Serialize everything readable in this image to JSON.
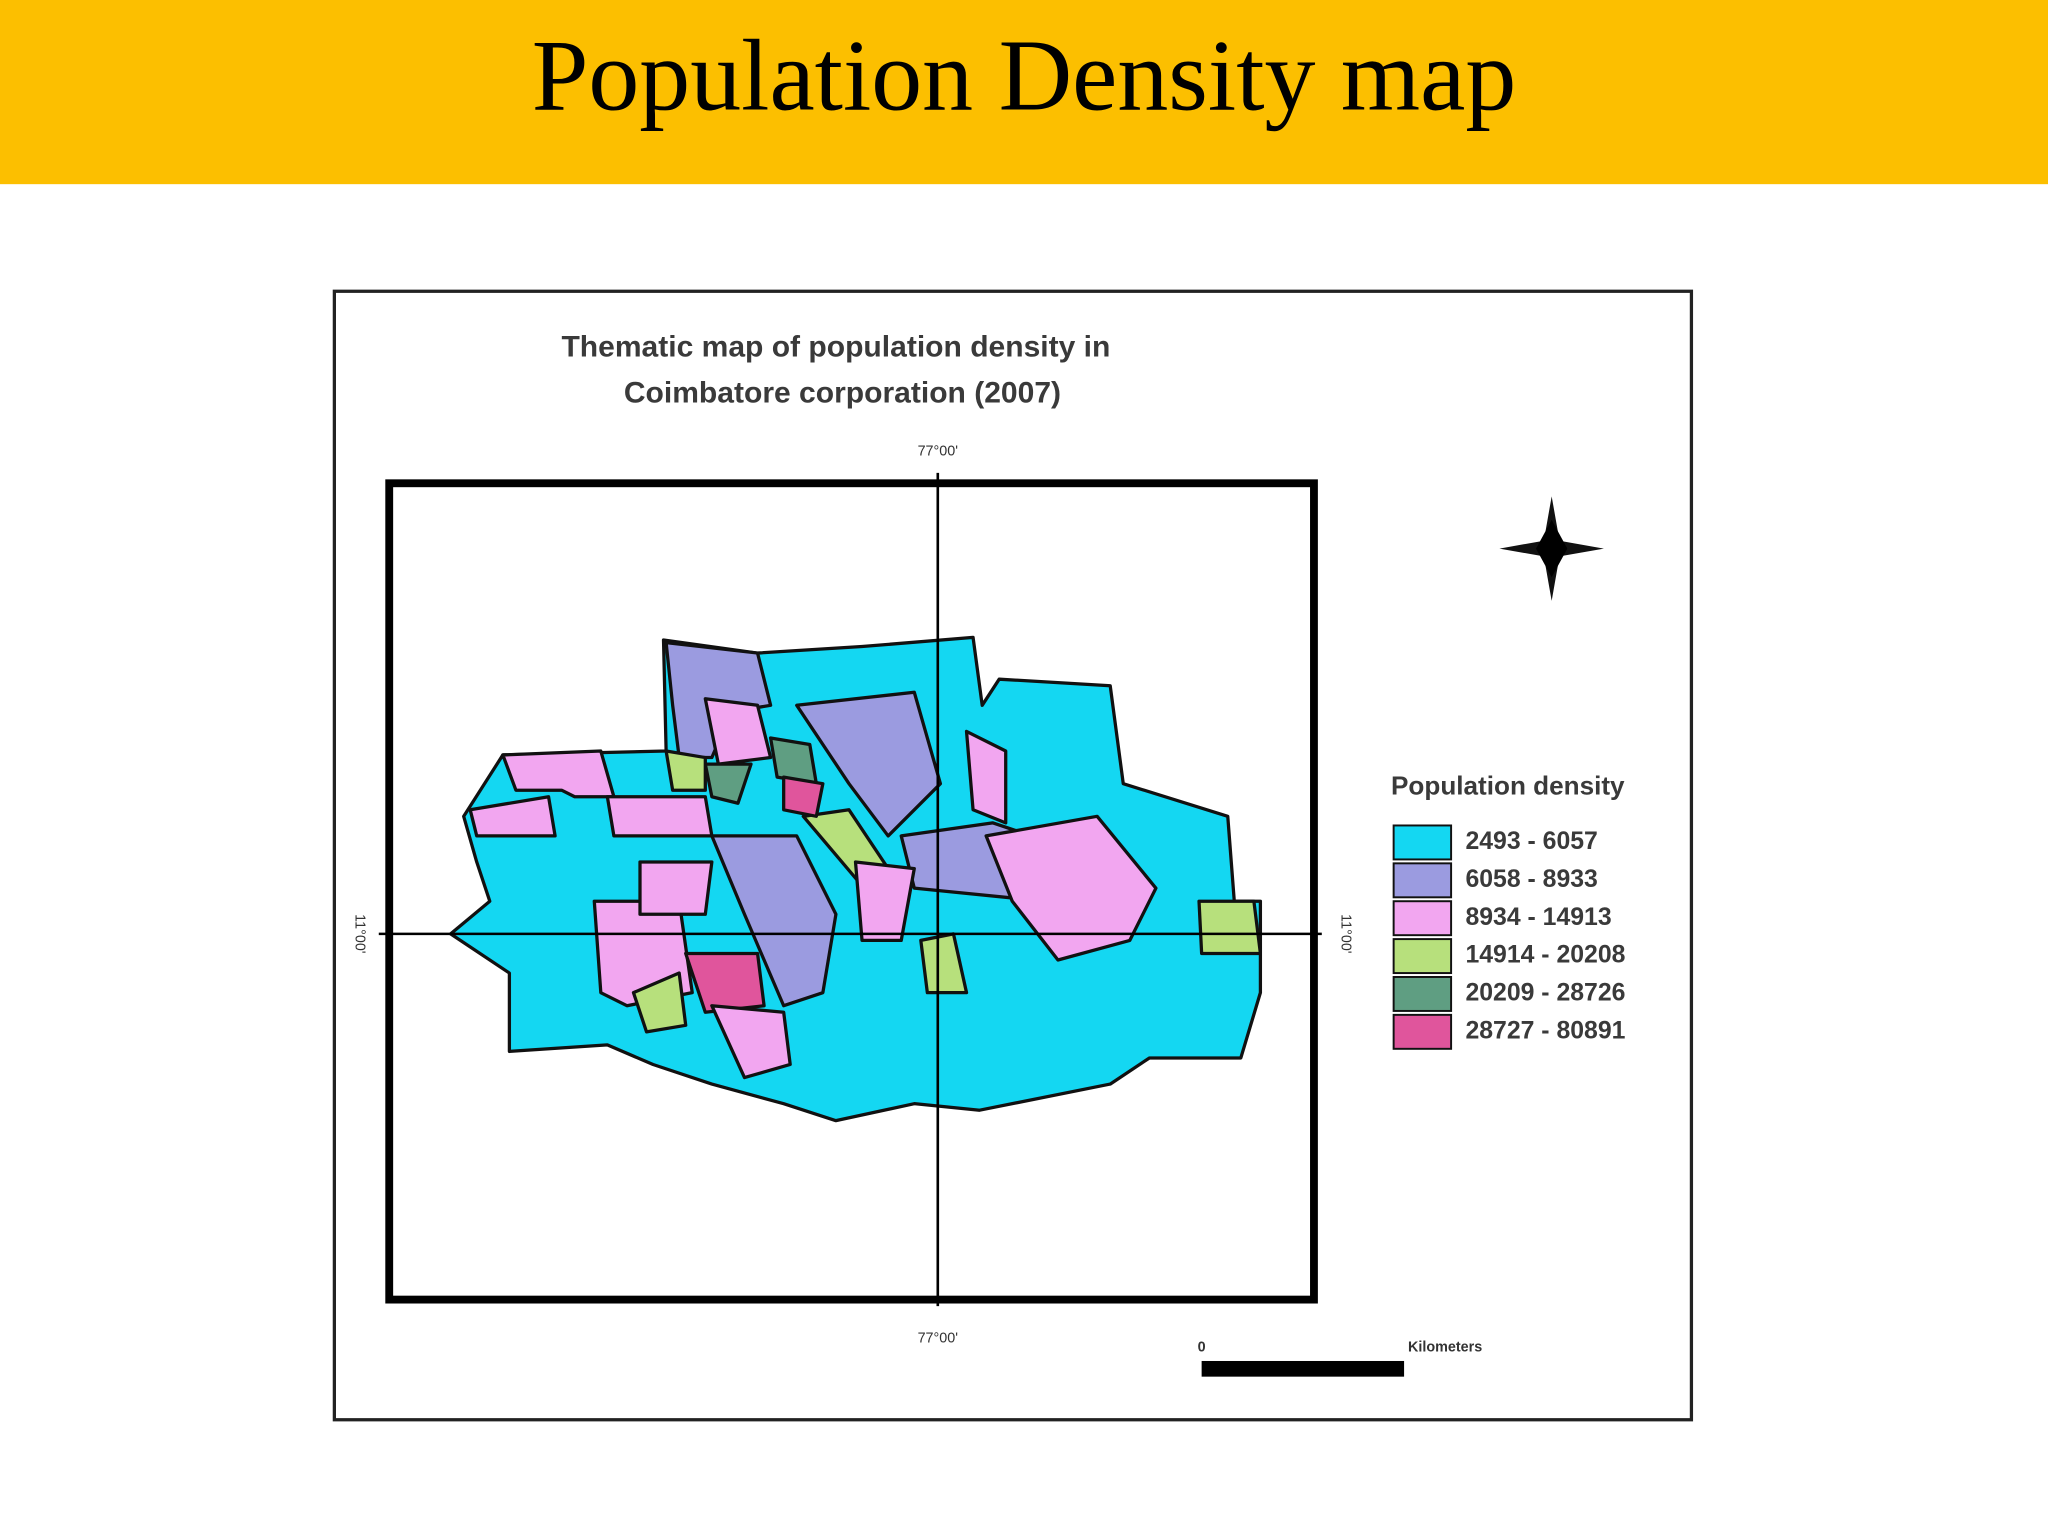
{
  "header": {
    "title": "Population Density map"
  },
  "map": {
    "title_lines": [
      "Thematic map of population density in",
      "Coimbatore corporation (2007)"
    ],
    "longitude_label_top": "77°00'",
    "longitude_label_bottom": "77°00'",
    "latitude_label_left": "11°00'",
    "latitude_label_right": "11°00'",
    "legend": {
      "title": "Population density",
      "items": [
        {
          "name": "2493 - 6057",
          "color": "#14d7f2"
        },
        {
          "name": "6058 - 8933",
          "color": "#9b9be0"
        },
        {
          "name": "8934 - 14913",
          "color": "#f2a6f0"
        },
        {
          "name": "14914 - 20208",
          "color": "#b7e07c"
        },
        {
          "name": "20209 - 28726",
          "color": "#5f9e82"
        },
        {
          "name": "28727 - 80891",
          "color": "#e0559c"
        }
      ]
    },
    "scale_bar": {
      "start_label": "0",
      "unit_label": "Kilometers"
    }
  }
}
